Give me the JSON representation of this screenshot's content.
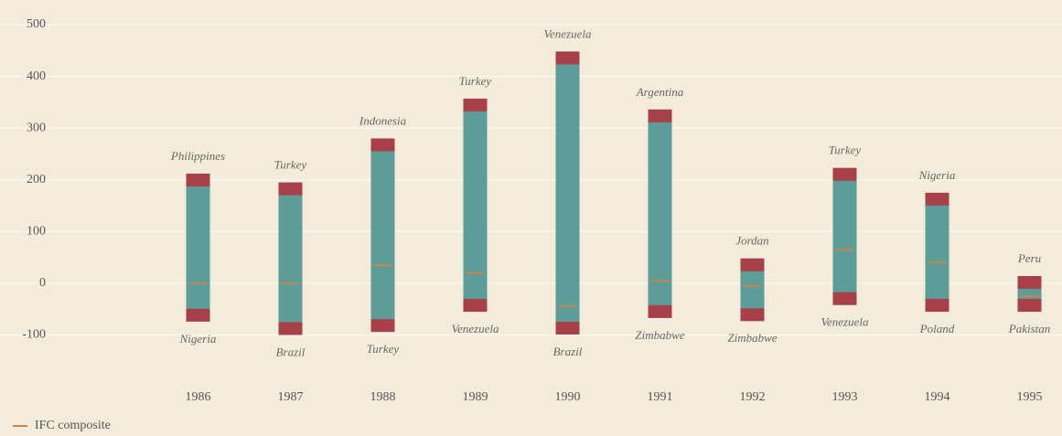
{
  "chart_data": {
    "type": "range",
    "categories": [
      "1986",
      "1987",
      "1988",
      "1989",
      "1990",
      "1991",
      "1992",
      "1993",
      "1994",
      "1995"
    ],
    "high": {
      "values": [
        212,
        195,
        280,
        357,
        448,
        336,
        48,
        223,
        175,
        14
      ],
      "labels": [
        "Philippines",
        "Turkey",
        "Indonesia",
        "Turkey",
        "Venezuela",
        "Argentina",
        "Jordan",
        "Turkey",
        "Nigeria",
        "Peru"
      ]
    },
    "low": {
      "values": [
        -74,
        -100,
        -94,
        -55,
        -99,
        -67,
        -73,
        -42,
        -55,
        -55
      ],
      "labels": [
        "Nigeria",
        "Brazil",
        "Turkey",
        "Venezuela",
        "Brazil",
        "Zimbabwe",
        "Zimbabwe",
        "Venezuela",
        "Poland",
        "Pakistan"
      ]
    },
    "series": [
      {
        "name": "IFC composite",
        "color": "#c8874a",
        "values": [
          0,
          0,
          35,
          20,
          -45,
          5,
          -5,
          65,
          40,
          -25
        ]
      }
    ],
    "bar_color": "#5e9c9a",
    "cap_color": "#a8404a",
    "ylim": [
      -100,
      500
    ],
    "yticks": [
      -100,
      0,
      100,
      200,
      300,
      400,
      500
    ],
    "grid": true
  }
}
